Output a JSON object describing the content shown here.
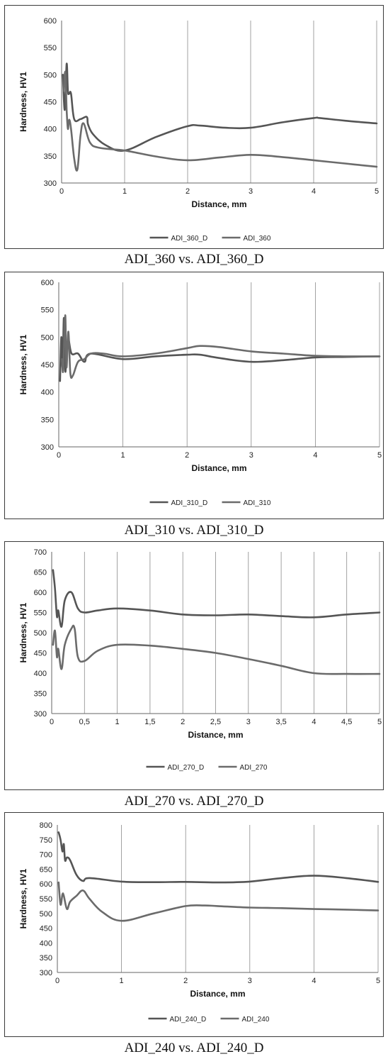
{
  "figures": [
    {
      "caption": "ADI_360 vs. ADI_360_D",
      "chart_data": {
        "type": "line",
        "xlabel": "Distance, mm",
        "ylabel": "Hardness, HV1",
        "xlim": [
          0,
          5
        ],
        "ylim": [
          300,
          600
        ],
        "xticks": [
          "0",
          "1",
          "2",
          "3",
          "4",
          "5"
        ],
        "yticks": [
          "300",
          "350",
          "400",
          "450",
          "500",
          "550",
          "600"
        ],
        "grid": "vertical",
        "legend_position": "bottom",
        "series": [
          {
            "name": "ADI_360_D",
            "color": "#555555",
            "x": [
              0.02,
              0.05,
              0.08,
              0.1,
              0.12,
              0.15,
              0.2,
              0.3,
              0.4,
              0.42,
              0.5,
              0.7,
              1.0,
              1.5,
              2.0,
              2.2,
              2.6,
              3.0,
              3.5,
              4.0,
              4.1,
              4.5,
              5.0
            ],
            "y": [
              500,
              435,
              520,
              470,
              465,
              465,
              418,
              418,
              422,
              408,
              390,
              370,
              360,
              385,
              405,
              406,
              402,
              402,
              412,
              420,
              420,
              415,
              410
            ]
          },
          {
            "name": "ADI_360",
            "color": "#6b6b6b",
            "x": [
              0.03,
              0.06,
              0.08,
              0.1,
              0.12,
              0.15,
              0.2,
              0.25,
              0.3,
              0.35,
              0.45,
              0.6,
              1.0,
              1.5,
              2.0,
              2.5,
              3.0,
              3.5,
              4.0,
              4.5,
              5.0
            ],
            "y": [
              470,
              505,
              435,
              400,
              417,
              400,
              345,
              325,
              388,
              410,
              375,
              365,
              360,
              349,
              342,
              347,
              352,
              348,
              342,
              336,
              330
            ]
          }
        ]
      }
    },
    {
      "caption": "ADI_310 vs. ADI_310_D",
      "chart_data": {
        "type": "line",
        "xlabel": "Distance, mm",
        "ylabel": "Hardness, HV1",
        "xlim": [
          0,
          5
        ],
        "ylim": [
          300,
          600
        ],
        "xticks": [
          "0",
          "1",
          "2",
          "3",
          "4",
          "5"
        ],
        "yticks": [
          "300",
          "350",
          "400",
          "450",
          "500",
          "550",
          "600"
        ],
        "grid": "vertical",
        "legend_position": "bottom",
        "series": [
          {
            "name": "ADI_310_D",
            "color": "#555555",
            "x": [
              0.02,
              0.04,
              0.06,
              0.08,
              0.1,
              0.12,
              0.15,
              0.2,
              0.3,
              0.4,
              0.5,
              1.0,
              1.5,
              2.0,
              2.2,
              2.5,
              3.0,
              3.5,
              4.0,
              4.5,
              5.0
            ],
            "y": [
              420,
              500,
              445,
              535,
              440,
              465,
              495,
              470,
              470,
              455,
              470,
              460,
              465,
              468,
              468,
              462,
              455,
              458,
              463,
              464,
              465
            ]
          },
          {
            "name": "ADI_310",
            "color": "#6b6b6b",
            "x": [
              0.05,
              0.07,
              0.1,
              0.12,
              0.15,
              0.18,
              0.22,
              0.3,
              0.4,
              0.5,
              0.7,
              1.0,
              1.5,
              2.0,
              2.2,
              2.5,
              3.0,
              3.5,
              4.0,
              4.5,
              5.0
            ],
            "y": [
              460,
              440,
              540,
              445,
              510,
              435,
              430,
              455,
              460,
              470,
              470,
              465,
              470,
              480,
              484,
              482,
              474,
              470,
              466,
              465,
              465
            ]
          }
        ]
      }
    },
    {
      "caption": "ADI_270 vs. ADI_270_D",
      "chart_data": {
        "type": "line",
        "xlabel": "Distance, mm",
        "ylabel": "Hardness, HV1",
        "xlim": [
          0,
          5
        ],
        "ylim": [
          300,
          700
        ],
        "xticks": [
          "0",
          "0,5",
          "1",
          "1,5",
          "2",
          "2,5",
          "3",
          "3,5",
          "4",
          "4,5",
          "5"
        ],
        "yticks": [
          "300",
          "350",
          "400",
          "450",
          "500",
          "550",
          "600",
          "650",
          "700"
        ],
        "grid": "vertical",
        "legend_position": "bottom",
        "series": [
          {
            "name": "ADI_270_D",
            "color": "#555555",
            "x": [
              0.02,
              0.05,
              0.08,
              0.1,
              0.15,
              0.2,
              0.3,
              0.4,
              0.5,
              0.7,
              1.0,
              1.5,
              2.0,
              2.5,
              3.0,
              3.5,
              4.0,
              4.5,
              5.0
            ],
            "y": [
              655,
              610,
              540,
              555,
              515,
              580,
              600,
              560,
              550,
              555,
              560,
              555,
              545,
              543,
              545,
              541,
              538,
              545,
              550
            ]
          },
          {
            "name": "ADI_270",
            "color": "#6b6b6b",
            "x": [
              0.02,
              0.05,
              0.08,
              0.1,
              0.15,
              0.2,
              0.3,
              0.35,
              0.4,
              0.5,
              0.7,
              1.0,
              1.5,
              2.0,
              2.5,
              3.0,
              3.5,
              4.0,
              4.5,
              5.0
            ],
            "y": [
              470,
              505,
              440,
              460,
              410,
              470,
              510,
              510,
              440,
              430,
              455,
              470,
              468,
              460,
              450,
              435,
              418,
              400,
              398,
              398
            ]
          }
        ]
      }
    },
    {
      "caption": "ADI_240 vs. ADI_240_D",
      "chart_data": {
        "type": "line",
        "xlabel": "Distance, mm",
        "ylabel": "Hardness, HV1",
        "xlim": [
          0,
          5
        ],
        "ylim": [
          300,
          800
        ],
        "xticks": [
          "0",
          "1",
          "2",
          "3",
          "4",
          "5"
        ],
        "yticks": [
          "300",
          "350",
          "400",
          "450",
          "500",
          "550",
          "600",
          "650",
          "700",
          "750",
          "800"
        ],
        "grid": "vertical",
        "legend_position": "bottom",
        "series": [
          {
            "name": "ADI_240_D",
            "color": "#555555",
            "x": [
              0.02,
              0.05,
              0.08,
              0.1,
              0.12,
              0.15,
              0.2,
              0.3,
              0.4,
              0.5,
              1.0,
              1.5,
              2.0,
              2.5,
              3.0,
              3.5,
              4.0,
              4.5,
              5.0
            ],
            "y": [
              775,
              750,
              710,
              735,
              680,
              690,
              680,
              630,
              610,
              620,
              608,
              606,
              607,
              605,
              608,
              620,
              628,
              620,
              607
            ]
          },
          {
            "name": "ADI_240",
            "color": "#6b6b6b",
            "x": [
              0.02,
              0.05,
              0.08,
              0.1,
              0.15,
              0.2,
              0.3,
              0.4,
              0.5,
              0.7,
              1.0,
              1.5,
              2.0,
              2.3,
              2.5,
              3.0,
              3.5,
              4.0,
              4.5,
              5.0
            ],
            "y": [
              605,
              530,
              565,
              560,
              515,
              540,
              560,
              578,
              550,
              505,
              475,
              500,
              525,
              527,
              525,
              520,
              518,
              515,
              513,
              510
            ]
          }
        ]
      }
    }
  ]
}
